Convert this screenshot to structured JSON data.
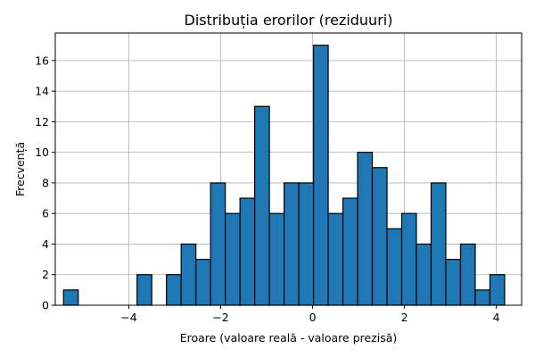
{
  "chart_data": {
    "type": "bar",
    "title": "Distribuția erorilor (reziduuri)",
    "xlabel": "Eroare (valoare reală - valoare prezisă)",
    "ylabel": "Frecvență",
    "xlim": [
      -5.6,
      4.55
    ],
    "ylim": [
      0,
      17.8
    ],
    "grid": true,
    "bin_edges": [
      -5.42,
      -5.1,
      -4.78,
      -4.46,
      -4.14,
      -3.82,
      -3.5,
      -3.18,
      -2.86,
      -2.54,
      -2.22,
      -1.9,
      -1.58,
      -1.26,
      -0.94,
      -0.62,
      -0.3,
      0.02,
      0.34,
      0.66,
      0.98,
      1.3,
      1.62,
      1.94,
      2.26,
      2.58,
      2.9,
      3.22,
      3.54,
      3.86,
      4.18
    ],
    "values": [
      1,
      0,
      0,
      0,
      0,
      2,
      0,
      2,
      4,
      3,
      8,
      6,
      7,
      13,
      6,
      8,
      8,
      17,
      6,
      7,
      10,
      9,
      5,
      6,
      4,
      8,
      3,
      4,
      1,
      2
    ],
    "xticks": [
      -4,
      -2,
      0,
      2,
      4
    ],
    "yticks": [
      0,
      2,
      4,
      6,
      8,
      10,
      12,
      14,
      16
    ],
    "xtick_labels": [
      "−4",
      "−2",
      "0",
      "2",
      "4"
    ],
    "ytick_labels": [
      "0",
      "2",
      "4",
      "6",
      "8",
      "10",
      "12",
      "14",
      "16"
    ],
    "colors": {
      "bar": "#1f77b4",
      "edge": "#000000",
      "grid": "#b0b0b0"
    }
  }
}
